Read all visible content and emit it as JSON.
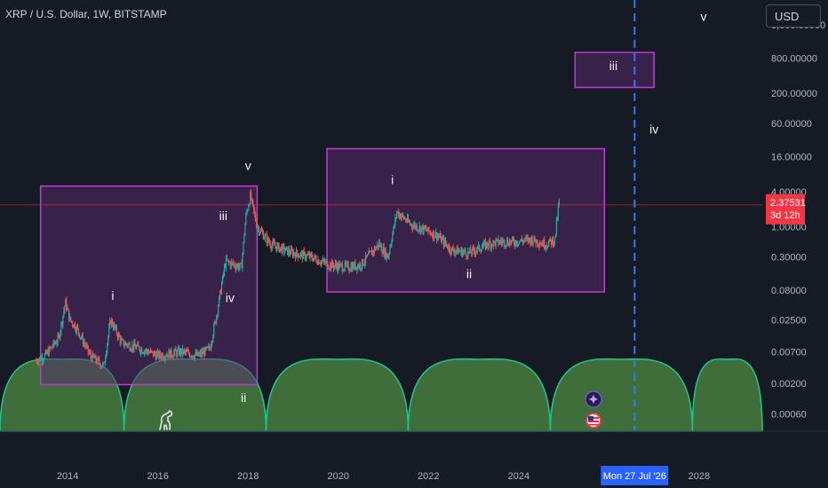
{
  "header": {
    "symbol_title": "XRP / U.S. Dollar, 1W, BITSTAMP"
  },
  "currency_button": "USD",
  "colors": {
    "background": "#161a25",
    "candle_up": "#26a69a",
    "candle_down": "#ef5350",
    "box_fill": "#5a2a6e",
    "box_stroke": "#c03ad8",
    "cycle_fill": "#3f6e3a",
    "cycle_stroke": "#22c08a",
    "dashed_line": "#2f7bf5",
    "price_badge": "#f23645",
    "date_badge": "#2962ff",
    "axis_text": "#b2b5be"
  },
  "price_axis": {
    "scale": "log",
    "ticks": [
      "3,000.00000",
      "800.00000",
      "200.00000",
      "60.00000",
      "16.00000",
      "4.00000",
      "1.00000",
      "0.30000",
      "0.08000",
      "0.02500",
      "0.00700",
      "0.00200",
      "0.00060"
    ],
    "current_price": "2.37531",
    "countdown": "3d 12h"
  },
  "time_axis": {
    "ticks": [
      "2014",
      "2016",
      "2018",
      "2020",
      "2022",
      "2024",
      "2028"
    ],
    "highlight_label": "Mon 27 Jul '26"
  },
  "chart_data": {
    "type": "line",
    "title": "XRP / U.S. Dollar, 1W, BITSTAMP",
    "xlabel": "",
    "ylabel": "",
    "x_range": [
      2012.5,
      2029.4
    ],
    "y_range_log": [
      0.0003,
      8000
    ],
    "series": [
      {
        "x": [
          2013.3,
          2013.5,
          2013.8,
          2013.95,
          2014.05,
          2014.2,
          2014.5,
          2014.8,
          2014.95,
          2015.2,
          2015.6,
          2016.0,
          2016.5,
          2016.9,
          2017.15,
          2017.3,
          2017.5,
          2017.7,
          2017.85,
          2017.95,
          2018.05,
          2018.2,
          2018.5,
          2018.8,
          2019.0,
          2019.4,
          2019.8,
          2020.2,
          2020.5,
          2020.9,
          2021.1,
          2021.3,
          2021.6,
          2021.9,
          2022.2,
          2022.5,
          2022.9,
          2023.3,
          2023.6,
          2023.9,
          2024.3,
          2024.6,
          2024.8,
          2024.9
        ],
        "y": [
          0.005,
          0.006,
          0.012,
          0.05,
          0.025,
          0.018,
          0.006,
          0.004,
          0.025,
          0.01,
          0.008,
          0.006,
          0.007,
          0.006,
          0.008,
          0.03,
          0.25,
          0.22,
          0.2,
          1.5,
          3.4,
          1.0,
          0.5,
          0.4,
          0.35,
          0.3,
          0.22,
          0.2,
          0.22,
          0.5,
          0.3,
          1.8,
          1.1,
          0.9,
          0.7,
          0.4,
          0.35,
          0.5,
          0.55,
          0.55,
          0.6,
          0.5,
          0.6,
          2.9
        ]
      }
    ],
    "wave_boxes": [
      {
        "x": [
          2013.4,
          2018.2
        ],
        "y": [
          0.0019,
          5.0
        ]
      },
      {
        "x": [
          2019.75,
          2025.9
        ],
        "y": [
          0.075,
          22.0
        ]
      },
      {
        "x": [
          2025.25,
          2027.0
        ],
        "y": [
          250.0,
          1000.0
        ]
      }
    ],
    "wave_labels": [
      {
        "text": "i",
        "x": 2015.0,
        "y": 0.055
      },
      {
        "text": "ii",
        "x": 2017.9,
        "y": 0.00095
      },
      {
        "text": "iii",
        "x": 2017.45,
        "y": 1.3
      },
      {
        "text": "iv",
        "x": 2017.6,
        "y": 0.05
      },
      {
        "text": "v",
        "x": 2018.0,
        "y": 9.5
      },
      {
        "text": "i",
        "x": 2021.2,
        "y": 5.4
      },
      {
        "text": "ii",
        "x": 2022.9,
        "y": 0.13
      },
      {
        "text": "iii",
        "x": 2026.1,
        "y": 500.0
      },
      {
        "text": "iv",
        "x": 2027.0,
        "y": 40.0
      },
      {
        "text": "v",
        "x": 2028.1,
        "y": 3500.0
      }
    ],
    "cycle_arcs": [
      [
        2012.5,
        2015.25
      ],
      [
        2015.25,
        2018.4
      ],
      [
        2018.4,
        2021.55
      ],
      [
        2021.55,
        2024.7
      ],
      [
        2024.7,
        2027.85
      ],
      [
        2027.85,
        2029.4
      ]
    ],
    "vertical_marker_x": 2026.57,
    "grid": false
  }
}
